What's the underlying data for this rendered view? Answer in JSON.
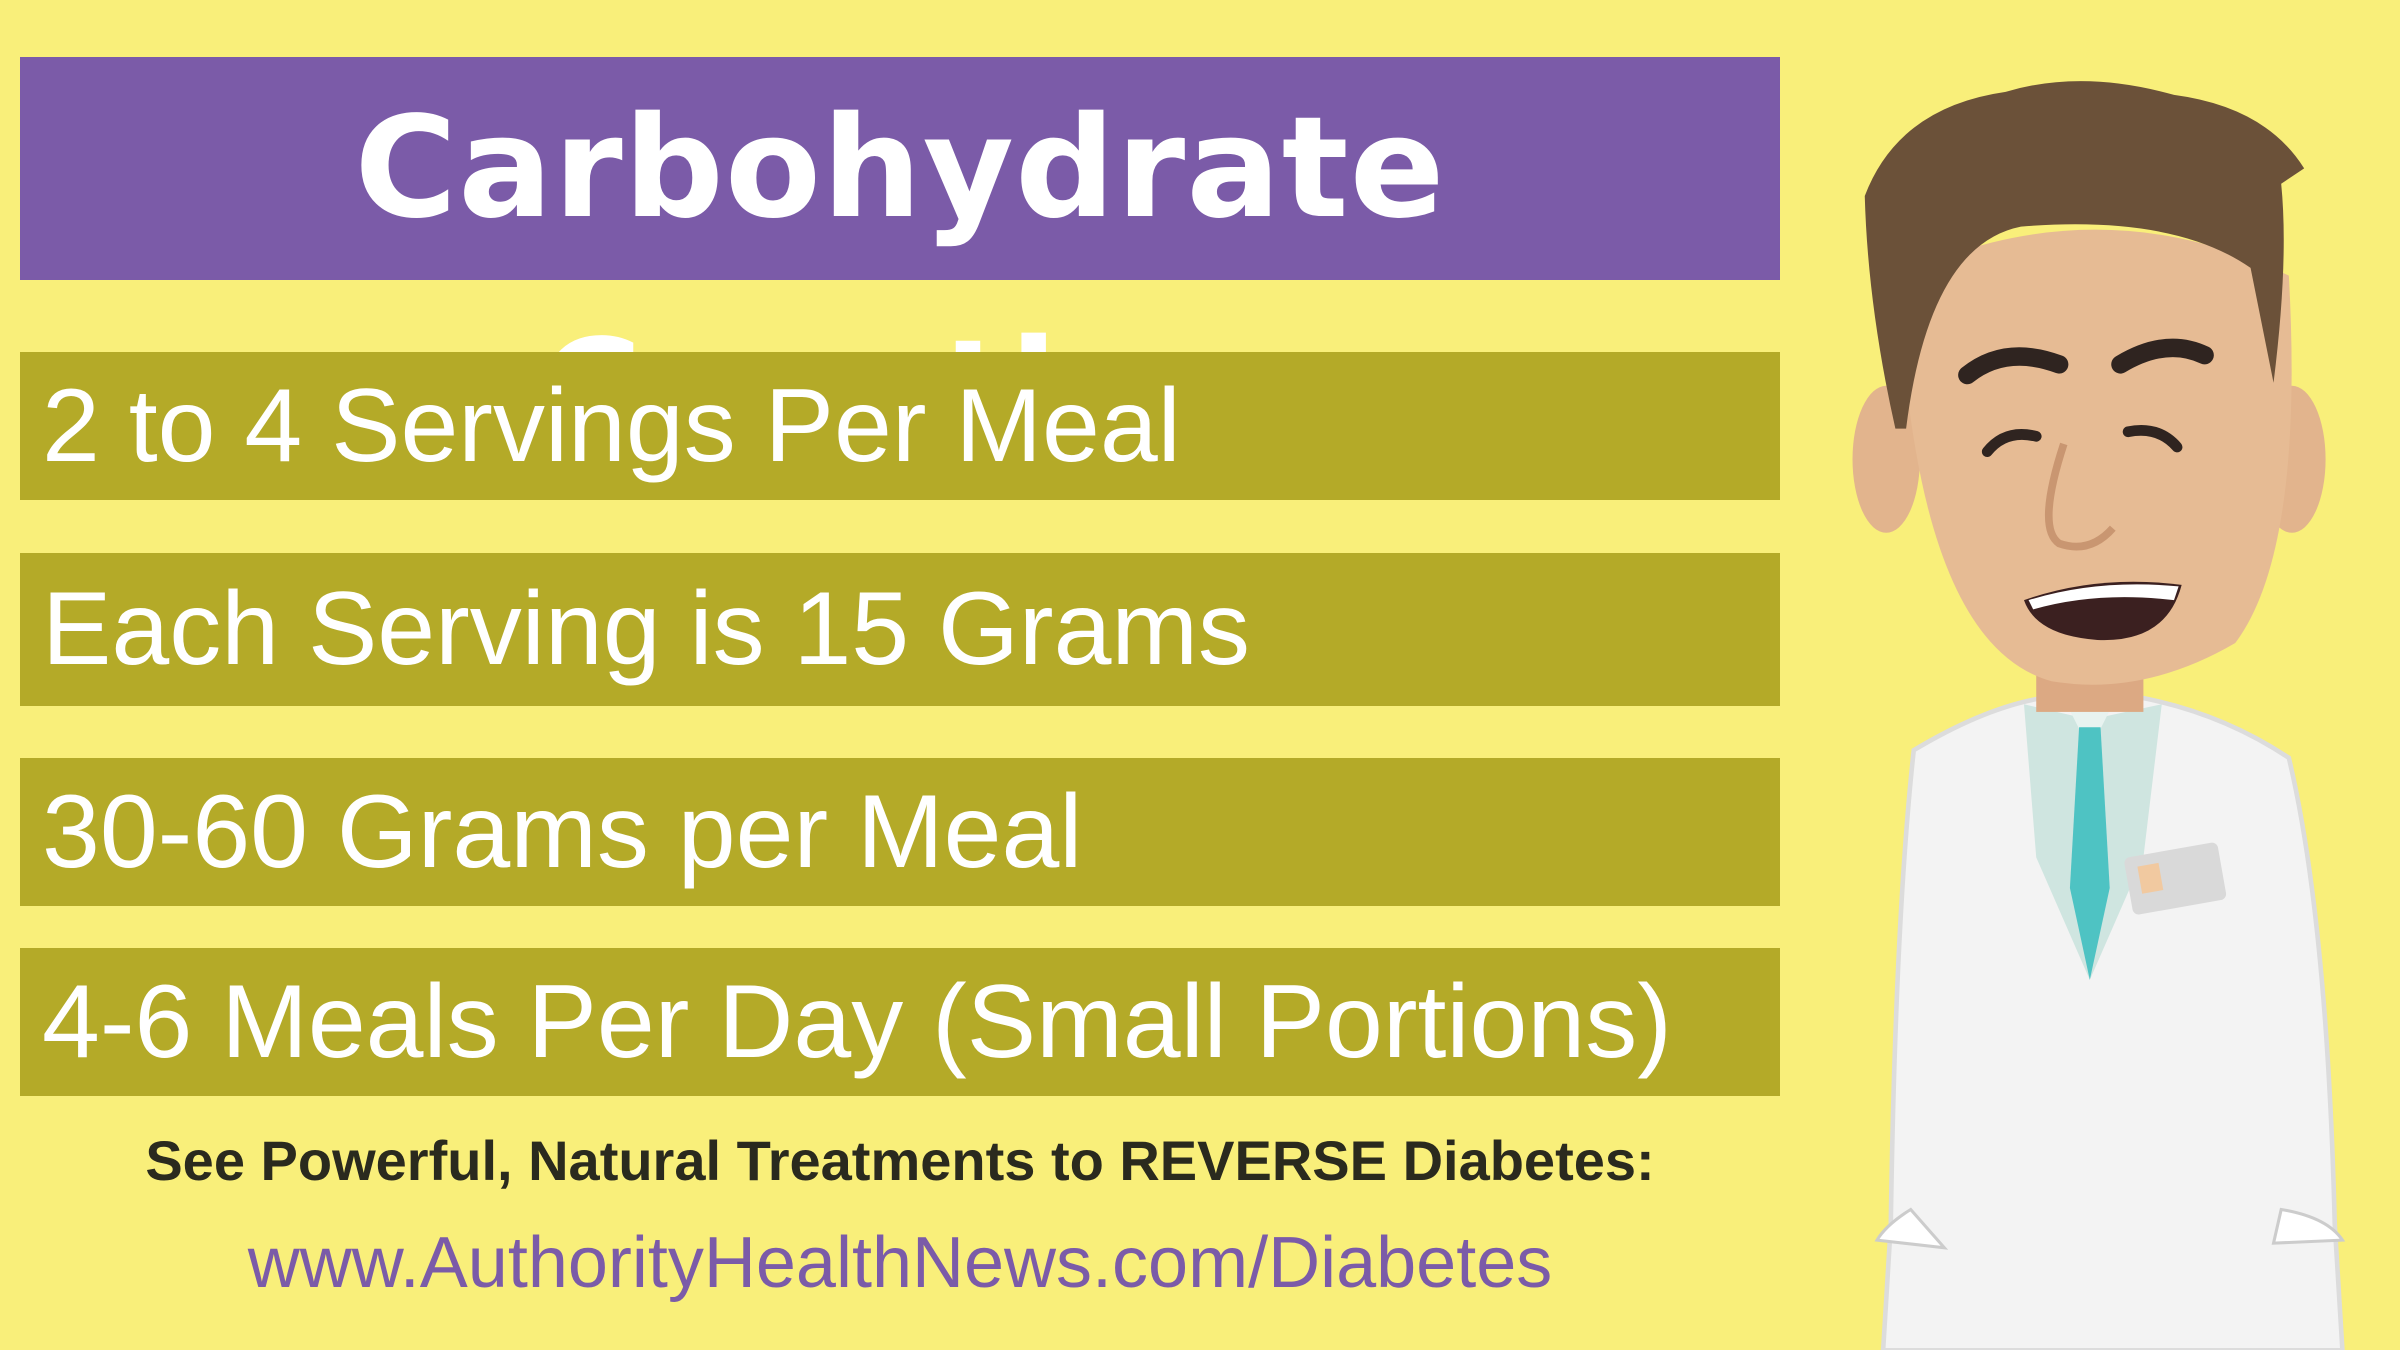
{
  "header": {
    "title": "Carbohydrate Counting"
  },
  "items": [
    "2 to 4 Servings Per Meal",
    "Each Serving is 15 Grams",
    "30-60 Grams per Meal",
    "4-6 Meals Per Day (Small Portions)"
  ],
  "footer": {
    "promo": "See Powerful, Natural Treatments to REVERSE Diabetes:",
    "url": "www.AuthorityHealthNews.com/Diabetes"
  }
}
